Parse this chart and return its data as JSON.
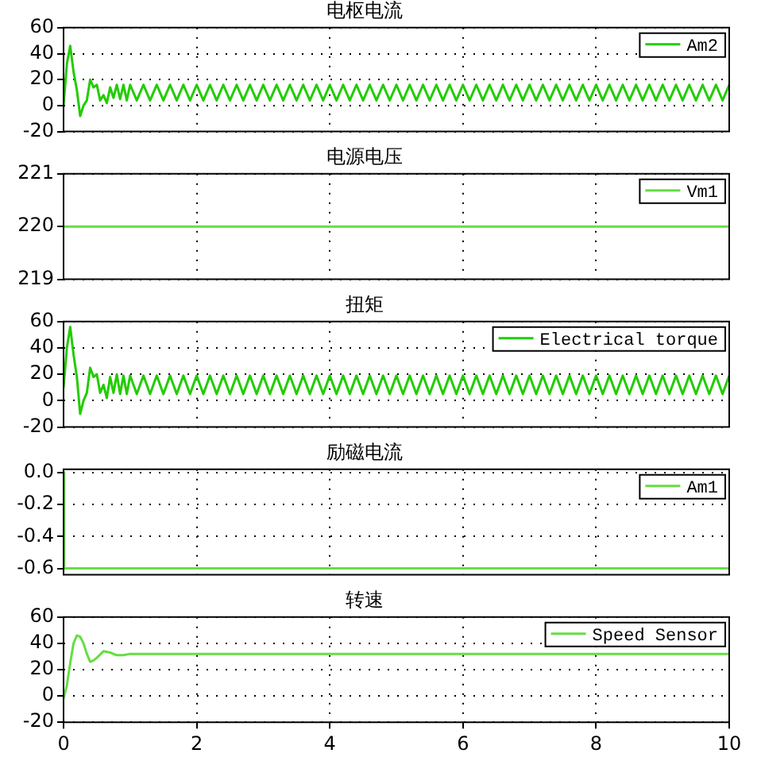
{
  "chart_data": [
    {
      "type": "line",
      "title": "电枢电流",
      "x": [
        0,
        0.05,
        0.1,
        0.15,
        0.2,
        0.25,
        0.3,
        0.35,
        0.4,
        0.45,
        0.5,
        0.55,
        0.6,
        0.65,
        0.7,
        0.75,
        0.8,
        0.85,
        0.9,
        0.95,
        1,
        1.1,
        1.2,
        1.3,
        1.4,
        1.5,
        1.6,
        1.7,
        1.8,
        1.9,
        2,
        2.1,
        2.2,
        2.3,
        2.4,
        2.5,
        2.6,
        2.7,
        2.8,
        2.9,
        3,
        3.1,
        3.2,
        3.3,
        3.4,
        3.5,
        3.6,
        3.7,
        3.8,
        3.9,
        4,
        4.1,
        4.2,
        4.3,
        4.4,
        4.5,
        4.6,
        4.7,
        4.8,
        4.9,
        5,
        5.1,
        5.2,
        5.3,
        5.4,
        5.5,
        5.6,
        5.7,
        5.8,
        5.9,
        6,
        6.1,
        6.2,
        6.3,
        6.4,
        6.5,
        6.6,
        6.7,
        6.8,
        6.9,
        7,
        7.1,
        7.2,
        7.3,
        7.4,
        7.5,
        7.6,
        7.7,
        7.8,
        7.9,
        8,
        8.1,
        8.2,
        8.3,
        8.4,
        8.5,
        8.6,
        8.7,
        8.8,
        8.9,
        9,
        9.1,
        9.2,
        9.3,
        9.4,
        9.5,
        9.6,
        9.7,
        9.8,
        9.9,
        10
      ],
      "series": [
        {
          "name": "Am2",
          "color": "#22cc00",
          "values": [
            0,
            32,
            46,
            26,
            12,
            -8,
            0,
            4,
            20,
            14,
            16,
            4,
            8,
            2,
            14,
            6,
            16,
            5,
            16,
            4,
            16,
            4,
            16,
            4,
            16,
            4,
            16,
            4,
            16,
            4,
            16,
            4,
            16,
            4,
            16,
            4,
            16,
            4,
            16,
            4,
            16,
            4,
            16,
            4,
            16,
            4,
            16,
            4,
            16,
            4,
            16,
            4,
            16,
            4,
            16,
            4,
            16,
            4,
            16,
            4,
            16,
            4,
            16,
            4,
            16,
            4,
            16,
            4,
            16,
            4,
            16,
            4,
            16,
            4,
            16,
            4,
            16,
            4,
            16,
            4,
            16,
            4,
            16,
            4,
            16,
            4,
            16,
            4,
            16,
            4,
            16,
            4,
            16,
            4,
            16,
            4,
            16,
            4,
            16,
            4,
            16,
            4,
            16,
            4,
            16,
            4,
            16,
            4,
            16,
            4,
            16
          ]
        }
      ],
      "xlim": [
        0,
        10
      ],
      "xticks": [
        0,
        2,
        4,
        6,
        8,
        10
      ],
      "ylim": [
        -20,
        60
      ],
      "yticks": [
        -20,
        0,
        20,
        40,
        60
      ],
      "grid": true,
      "legend": "top right",
      "tick_labels": "y",
      "marker": "none"
    },
    {
      "type": "line",
      "title": "电源电压",
      "x": [
        0,
        10
      ],
      "series": [
        {
          "name": "Vm1",
          "color": "#66dd44",
          "values": [
            220,
            220
          ]
        }
      ],
      "xlim": [
        0,
        10
      ],
      "xticks": [
        0,
        2,
        4,
        6,
        8,
        10
      ],
      "ylim": [
        219,
        221
      ],
      "yticks": [
        219,
        220,
        221
      ],
      "grid": true,
      "legend": "top right",
      "tick_labels": "y",
      "marker": "none"
    },
    {
      "type": "line",
      "title": "扭矩",
      "x": [
        0,
        0.05,
        0.1,
        0.15,
        0.2,
        0.25,
        0.3,
        0.35,
        0.4,
        0.45,
        0.5,
        0.55,
        0.6,
        0.65,
        0.7,
        0.75,
        0.8,
        0.85,
        0.9,
        0.95,
        1,
        1.1,
        1.2,
        1.3,
        1.4,
        1.5,
        1.6,
        1.7,
        1.8,
        1.9,
        2,
        2.1,
        2.2,
        2.3,
        2.4,
        2.5,
        2.6,
        2.7,
        2.8,
        2.9,
        3,
        3.1,
        3.2,
        3.3,
        3.4,
        3.5,
        3.6,
        3.7,
        3.8,
        3.9,
        4,
        4.1,
        4.2,
        4.3,
        4.4,
        4.5,
        4.6,
        4.7,
        4.8,
        4.9,
        5,
        5.1,
        5.2,
        5.3,
        5.4,
        5.5,
        5.6,
        5.7,
        5.8,
        5.9,
        6,
        6.1,
        6.2,
        6.3,
        6.4,
        6.5,
        6.6,
        6.7,
        6.8,
        6.9,
        7,
        7.1,
        7.2,
        7.3,
        7.4,
        7.5,
        7.6,
        7.7,
        7.8,
        7.9,
        8,
        8.1,
        8.2,
        8.3,
        8.4,
        8.5,
        8.6,
        8.7,
        8.8,
        8.9,
        9,
        9.1,
        9.2,
        9.3,
        9.4,
        9.5,
        9.6,
        9.7,
        9.8,
        9.9,
        10
      ],
      "series": [
        {
          "name": "Electrical torque",
          "color": "#22cc00",
          "values": [
            10,
            40,
            56,
            35,
            18,
            -10,
            0,
            6,
            25,
            18,
            20,
            6,
            12,
            2,
            18,
            6,
            20,
            5,
            19,
            5,
            19,
            5,
            19,
            5,
            19,
            5,
            19,
            5,
            19,
            5,
            19,
            5,
            19,
            5,
            19,
            5,
            19,
            5,
            19,
            5,
            19,
            5,
            19,
            5,
            19,
            5,
            19,
            5,
            19,
            5,
            19,
            5,
            19,
            5,
            19,
            5,
            19,
            5,
            19,
            5,
            19,
            5,
            19,
            5,
            19,
            5,
            19,
            5,
            19,
            5,
            19,
            5,
            19,
            5,
            19,
            5,
            19,
            5,
            19,
            5,
            19,
            5,
            19,
            5,
            19,
            5,
            19,
            5,
            19,
            5,
            19,
            5,
            19,
            5,
            19,
            5,
            19,
            5,
            19,
            5,
            19,
            5,
            19,
            5,
            19,
            5,
            19,
            5,
            19,
            5,
            19
          ]
        }
      ],
      "xlim": [
        0,
        10
      ],
      "xticks": [
        0,
        2,
        4,
        6,
        8,
        10
      ],
      "ylim": [
        -20,
        60
      ],
      "yticks": [
        -20,
        0,
        20,
        40,
        60
      ],
      "grid": true,
      "legend": "top right",
      "tick_labels": "y",
      "marker": "none"
    },
    {
      "type": "line",
      "title": "励磁电流",
      "x": [
        0,
        0.01,
        10
      ],
      "series": [
        {
          "name": "Am1",
          "color": "#66dd44",
          "values": [
            0,
            -0.6,
            -0.6
          ]
        }
      ],
      "xlim": [
        0,
        10
      ],
      "xticks": [
        0,
        2,
        4,
        6,
        8,
        10
      ],
      "ylim": [
        -0.64,
        0.02
      ],
      "yticks": [
        {
          "value": -0.6,
          "label": "-0.6"
        },
        {
          "value": -0.4,
          "label": "-0.4"
        },
        {
          "value": -0.2,
          "label": "-0.2"
        },
        {
          "value": 0,
          "label": "0.0"
        }
      ],
      "grid": true,
      "legend": "top right",
      "tick_labels": "y",
      "marker": "none"
    },
    {
      "type": "line",
      "title": "转速",
      "x": [
        0,
        0.05,
        0.1,
        0.15,
        0.2,
        0.25,
        0.3,
        0.35,
        0.4,
        0.45,
        0.5,
        0.6,
        0.7,
        0.8,
        0.9,
        1,
        2,
        4,
        6,
        8,
        10
      ],
      "series": [
        {
          "name": "Speed Sensor",
          "color": "#66dd44",
          "values": [
            -2,
            8,
            25,
            40,
            46,
            45,
            40,
            32,
            26,
            27,
            29,
            34,
            33,
            31,
            31,
            32,
            32,
            32,
            32,
            32,
            32
          ]
        }
      ],
      "xlim": [
        0,
        10
      ],
      "xticks": [
        0,
        2,
        4,
        6,
        8,
        10
      ],
      "ylim": [
        -20,
        60
      ],
      "yticks": [
        -20,
        0,
        20,
        40,
        60
      ],
      "grid": true,
      "legend": "top right",
      "marker": "none"
    }
  ]
}
